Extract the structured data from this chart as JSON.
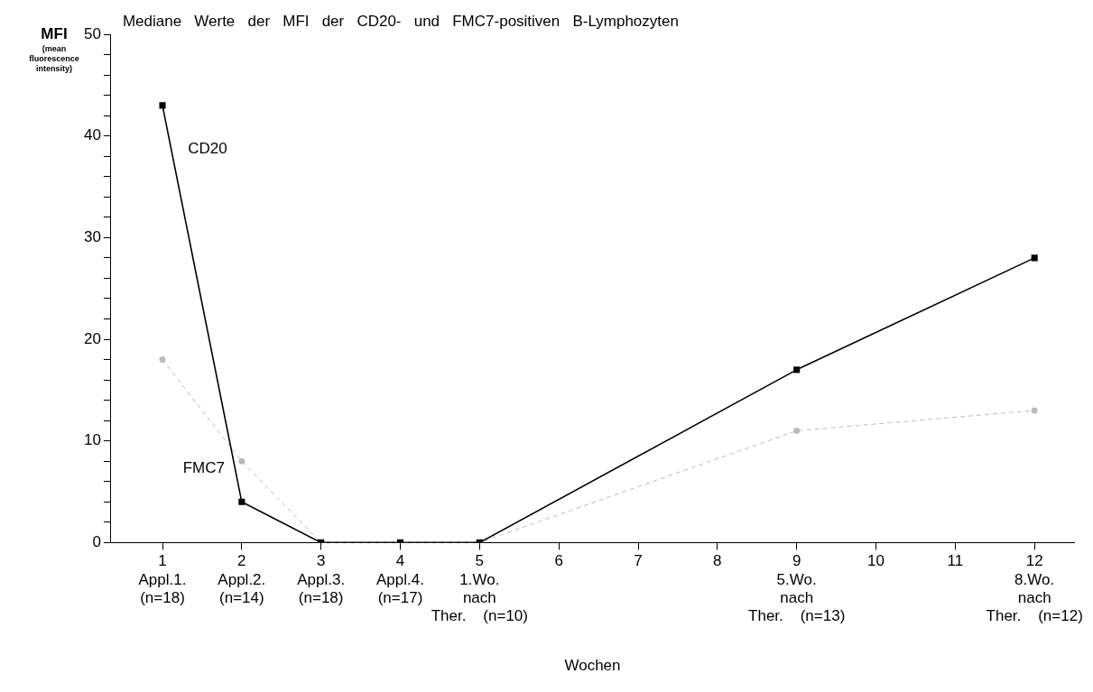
{
  "chart_data": {
    "type": "line",
    "title": "Mediane   Werte   der   MFI   der   CD20-   und   FMC7-positiven   B-Lymphozyten",
    "xlabel": "Wochen",
    "ylabel": "MFI (mean fluorescence intensity)",
    "x": [
      1,
      2,
      3,
      4,
      5,
      9,
      12
    ],
    "xlim": [
      0.35,
      12.5
    ],
    "xticks": [
      {
        "value": 1,
        "label": "1\nAppl.1.\n(n=18)"
      },
      {
        "value": 2,
        "label": "2\nAppl.2.\n(n=14)"
      },
      {
        "value": 3,
        "label": "3\nAppl.3.\n(n=18)"
      },
      {
        "value": 4,
        "label": "4\nAppl.4.\n(n=17)"
      },
      {
        "value": 5,
        "label": "5\n1.Wo.\nnach\nTher.    (n=10)"
      },
      6,
      7,
      8,
      {
        "value": 9,
        "label": "9\n5.Wo.\nnach\nTher.    (n=13)"
      },
      10,
      11,
      {
        "value": 12,
        "label": "12\n8.Wo.\nnach\nTher.    (n=12)"
      }
    ],
    "ylim": [
      0,
      50
    ],
    "yticks": [
      0,
      {
        "value": 2,
        "label": null
      },
      {
        "value": 4,
        "label": null
      },
      {
        "value": 6,
        "label": null
      },
      {
        "value": 8,
        "label": null
      },
      10,
      {
        "value": 12,
        "label": null
      },
      {
        "value": 14,
        "label": null
      },
      {
        "value": 16,
        "label": null
      },
      {
        "value": 18,
        "label": null
      },
      20,
      {
        "value": 22,
        "label": null
      },
      {
        "value": 24,
        "label": null
      },
      {
        "value": 26,
        "label": null
      },
      {
        "value": 28,
        "label": null
      },
      30,
      {
        "value": 32,
        "label": null
      },
      {
        "value": 34,
        "label": null
      },
      {
        "value": 36,
        "label": null
      },
      {
        "value": 38,
        "label": null
      },
      40,
      {
        "value": 42,
        "label": null
      },
      {
        "value": 44,
        "label": null
      },
      {
        "value": 46,
        "label": null
      },
      {
        "value": 48,
        "label": null
      },
      50
    ],
    "grid": false,
    "legend": false,
    "series": [
      {
        "name": "CD20",
        "color": "#000000",
        "marker": "square",
        "line_style": "solid",
        "values": [
          43,
          4,
          0,
          0,
          0,
          17,
          28
        ]
      },
      {
        "name": "FMC7",
        "color": "#bbbbbb",
        "marker": "circle",
        "line_style": "dashed",
        "values": [
          18,
          8,
          0,
          0,
          0,
          11,
          13
        ]
      }
    ]
  }
}
